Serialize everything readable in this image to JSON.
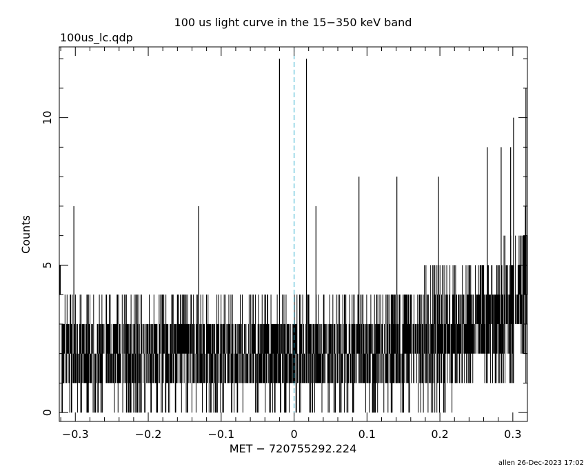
{
  "chart_data": {
    "type": "histogram",
    "title": "100 us light curve in the 15−350 keV band",
    "subtitle": "100us_lc.qdp",
    "xlabel": "MET − 720755292.224",
    "ylabel": "Counts",
    "xlim": [
      -0.322,
      0.32
    ],
    "ylim": [
      -0.3,
      12.4
    ],
    "bin_width": 0.0001,
    "x_ticks": [
      -0.3,
      -0.2,
      -0.1,
      0,
      0.1,
      0.2,
      0.3
    ],
    "x_tick_labels": [
      "−0.3",
      "−0.2",
      "−0.1",
      "0",
      "0.1",
      "0.2",
      "0.3"
    ],
    "y_ticks": [
      0,
      5,
      10
    ],
    "y_tick_labels": [
      "0",
      "5",
      "10"
    ],
    "trigger_line": {
      "x": 0,
      "color": "#1aa7c9",
      "style": "dashed"
    },
    "series_color": "#000000",
    "trend": [
      {
        "x": -0.32,
        "low": 0,
        "high": 4
      },
      {
        "x": -0.15,
        "low": 0,
        "high": 4
      },
      {
        "x": 0.0,
        "low": 0,
        "high": 4
      },
      {
        "x": 0.1,
        "low": 0,
        "high": 4
      },
      {
        "x": 0.2,
        "low": 0,
        "high": 5
      },
      {
        "x": 0.25,
        "low": 1,
        "high": 5
      },
      {
        "x": 0.3,
        "low": 1,
        "high": 6
      },
      {
        "x": 0.32,
        "low": 2,
        "high": 7
      }
    ],
    "spikes": [
      {
        "x": -0.302,
        "value": 7
      },
      {
        "x": -0.131,
        "value": 7
      },
      {
        "x": -0.02,
        "value": 12
      },
      {
        "x": 0.017,
        "value": 12
      },
      {
        "x": 0.03,
        "value": 7
      },
      {
        "x": 0.089,
        "value": 8
      },
      {
        "x": 0.141,
        "value": 8
      },
      {
        "x": 0.198,
        "value": 8
      },
      {
        "x": 0.265,
        "value": 9
      },
      {
        "x": 0.284,
        "value": 9
      },
      {
        "x": 0.297,
        "value": 9
      },
      {
        "x": 0.301,
        "value": 10
      },
      {
        "x": 0.318,
        "value": 11
      }
    ]
  },
  "footer": {
    "credit": "allen 26-Dec-2023 17:02"
  }
}
